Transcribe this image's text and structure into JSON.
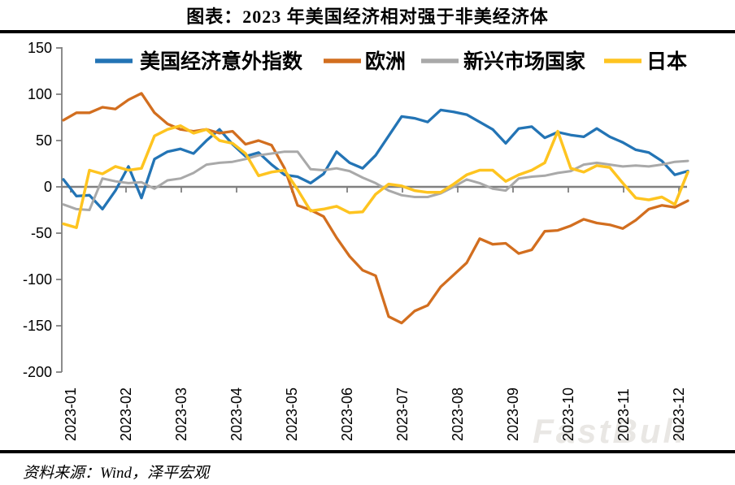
{
  "title": "图表：2023 年美国经济相对强于非美经济体",
  "source": "资料来源：Wind，泽平宏观",
  "watermark": "FastBull",
  "colors": {
    "axis": "#7f7f7f",
    "zero_line": "#808080",
    "divider": "#000000",
    "watermark": "#e9e7e4",
    "us_blue": "#2374b5",
    "europe_orange": "#d26e1f",
    "em_gray": "#a9a9a9",
    "japan_yellow": "#fec420"
  },
  "chart_data": {
    "type": "line",
    "title": "图表：2023 年美国经济相对强于非美经济体",
    "xlabel": "",
    "ylabel": "",
    "x_labels": [
      "2023-01",
      "2023-02",
      "2023-03",
      "2023-04",
      "2023-05",
      "2023-06",
      "2023-07",
      "2023-08",
      "2023-09",
      "2023-10",
      "2023-11",
      "2023-12"
    ],
    "y_ticks": [
      150,
      100,
      50,
      0,
      -50,
      -100,
      -150,
      -200
    ],
    "ylim": [
      -200,
      150
    ],
    "grid": "zero-line-only",
    "legend_position": "top",
    "x_sampling": "weekly, Jan 2023 – mid Dec 2023 (49 points per series)",
    "series": [
      {
        "name": "美国经济意外指数",
        "color": "#2374b5",
        "values": [
          8,
          -10,
          -9,
          -24,
          -4,
          22,
          -12,
          30,
          38,
          41,
          36,
          50,
          62,
          46,
          33,
          37,
          24,
          13,
          11,
          4,
          14,
          38,
          26,
          20,
          34,
          55,
          76,
          74,
          70,
          83,
          81,
          78,
          70,
          62,
          47,
          63,
          65,
          53,
          59,
          56,
          54,
          63,
          54,
          48,
          40,
          37,
          28,
          13,
          17
        ]
      },
      {
        "name": "欧洲",
        "color": "#d26e1f",
        "values": [
          72,
          80,
          80,
          86,
          84,
          94,
          101,
          80,
          68,
          62,
          60,
          62,
          58,
          60,
          46,
          50,
          45,
          20,
          -20,
          -25,
          -32,
          -55,
          -75,
          -90,
          -96,
          -140,
          -147,
          -134,
          -128,
          -108,
          -95,
          -82,
          -56,
          -62,
          -61,
          -72,
          -68,
          -48,
          -47,
          -42,
          -35,
          -39,
          -41,
          -45,
          -36,
          -24,
          -20,
          -22,
          -15
        ]
      },
      {
        "name": "新兴市场国家",
        "color": "#a9a9a9",
        "values": [
          -19,
          -24,
          -25,
          9,
          6,
          4,
          5,
          -2,
          7,
          9,
          15,
          24,
          26,
          27,
          30,
          34,
          36,
          38,
          38,
          19,
          18,
          20,
          17,
          10,
          4,
          -4,
          -9,
          -11,
          -11,
          -7,
          0,
          8,
          4,
          -2,
          -4,
          9,
          11,
          12,
          15,
          17,
          24,
          26,
          24,
          22,
          23,
          22,
          24,
          27,
          28
        ]
      },
      {
        "name": "日本",
        "color": "#fec420",
        "values": [
          -40,
          -44,
          18,
          14,
          22,
          18,
          20,
          55,
          62,
          66,
          58,
          62,
          50,
          47,
          36,
          12,
          16,
          18,
          -3,
          -26,
          -24,
          -21,
          -28,
          -27,
          -8,
          3,
          1,
          -4,
          -6,
          -6,
          3,
          13,
          18,
          18,
          6,
          13,
          18,
          26,
          60,
          20,
          16,
          23,
          21,
          4,
          -12,
          -14,
          -11,
          -19,
          16
        ]
      }
    ]
  }
}
